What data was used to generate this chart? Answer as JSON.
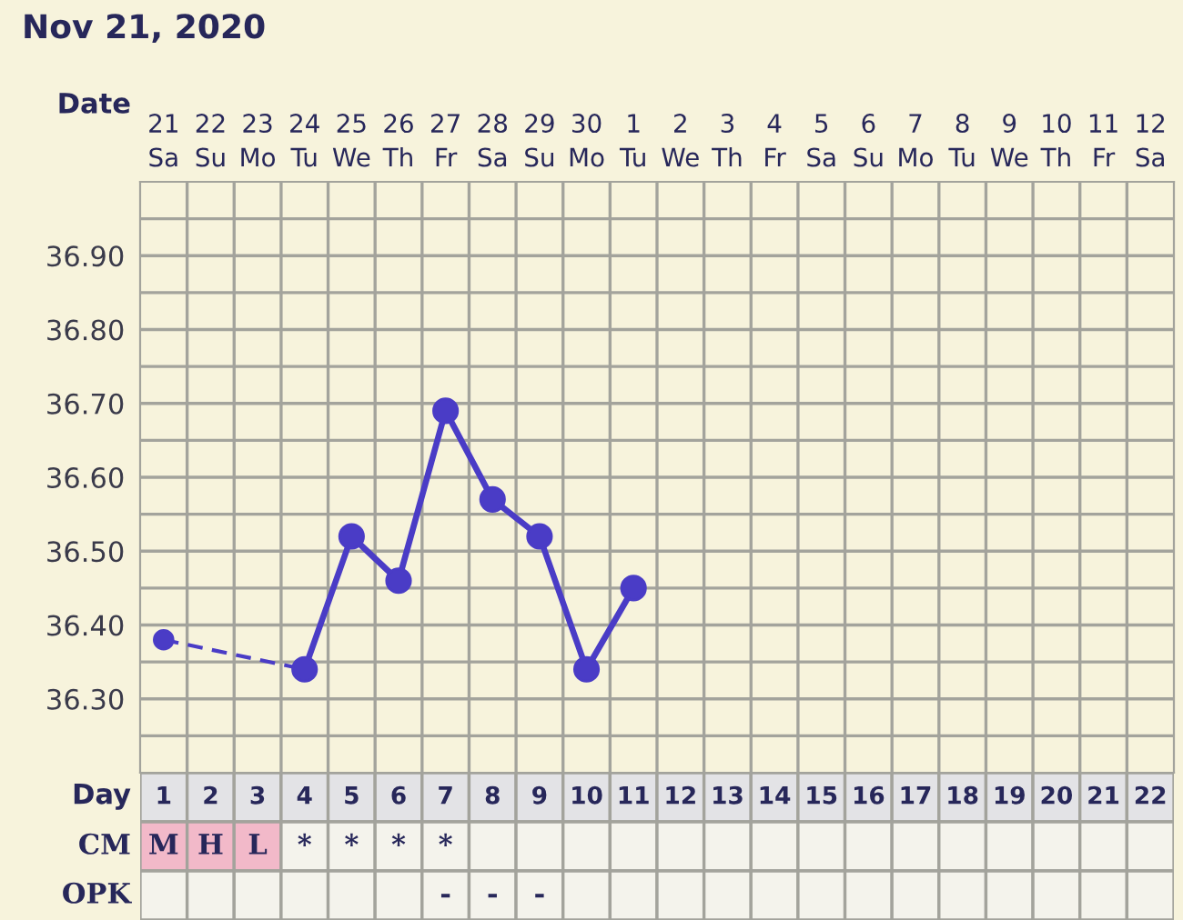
{
  "chart_data": [
    {
      "type": "line",
      "title": "Nov 21, 2020",
      "xlabel": "Date",
      "categories": [
        "21\nSa",
        "22\nSu",
        "23\nMo",
        "24\nTu",
        "25\nWe",
        "26\nTh",
        "27\nFr",
        "28\nSa",
        "29\nSu",
        "30\nMo",
        "1\nTu",
        "2\nWe",
        "3\nTh",
        "4\nFr",
        "5\nSa",
        "6\nSu",
        "7\nMo",
        "8\nTu",
        "9\nWe",
        "10\nTh",
        "11\nFr",
        "12\nSa"
      ],
      "ylim": [
        36.2,
        37.0
      ],
      "yticks": [
        {
          "value": 36.25,
          "label": null
        },
        {
          "value": 36.3,
          "label": "36.30"
        },
        {
          "value": 36.35,
          "label": null
        },
        {
          "value": 36.4,
          "label": "36.40"
        },
        {
          "value": 36.45,
          "label": null
        },
        {
          "value": 36.5,
          "label": "36.50"
        },
        {
          "value": 36.55,
          "label": null
        },
        {
          "value": 36.6,
          "label": "36.60"
        },
        {
          "value": 36.65,
          "label": null
        },
        {
          "value": 36.7,
          "label": "36.70"
        },
        {
          "value": 36.75,
          "label": null
        },
        {
          "value": 36.8,
          "label": "36.80"
        },
        {
          "value": 36.85,
          "label": null
        },
        {
          "value": 36.9,
          "label": "36.90"
        },
        {
          "value": 36.95,
          "label": null
        }
      ],
      "grid": true,
      "marker": "circle",
      "series": [
        {
          "color": "#4a3cc6",
          "line_style": "dashed",
          "values": [
            36.38,
            null,
            null,
            36.34,
            null,
            null,
            null,
            null,
            null,
            null,
            null,
            null,
            null,
            null,
            null,
            null,
            null,
            null,
            null,
            null,
            null,
            null
          ]
        },
        {
          "color": "#4a3cc6",
          "line_style": "solid",
          "values": [
            null,
            null,
            null,
            36.34,
            36.52,
            36.46,
            36.69,
            36.57,
            36.52,
            36.34,
            36.45,
            null,
            null,
            null,
            null,
            null,
            null,
            null,
            null,
            null,
            null,
            null
          ]
        }
      ]
    },
    {
      "type": "heatmap",
      "xlabel": "Day",
      "categories": [
        "1",
        "2",
        "3",
        "4",
        "5",
        "6",
        "7",
        "8",
        "9",
        "10",
        "11",
        "12",
        "13",
        "14",
        "15",
        "16",
        "17",
        "18",
        "19",
        "20",
        "21",
        "22"
      ],
      "y_categories": [
        "CM",
        "OPK"
      ],
      "cells": [
        [
          null,
          null,
          null,
          null,
          null,
          null,
          null,
          null,
          null,
          null,
          null,
          null,
          null,
          null,
          null,
          null,
          null,
          null,
          null,
          null,
          null,
          null
        ],
        [
          null,
          null,
          null,
          null,
          null,
          null,
          null,
          null,
          null,
          null,
          null,
          null,
          null,
          null,
          null,
          null,
          null,
          null,
          null,
          null,
          null,
          null
        ]
      ],
      "cell_labels": [
        [
          "M",
          "H",
          "L",
          "*",
          "*",
          "*",
          "*",
          null,
          null,
          null,
          null,
          null,
          null,
          null,
          null,
          null,
          null,
          null,
          null,
          null,
          null,
          null
        ],
        [
          null,
          null,
          null,
          null,
          null,
          null,
          "-",
          "-",
          "-",
          null,
          null,
          null,
          null,
          null,
          null,
          null,
          null,
          null,
          null,
          null,
          null,
          null
        ]
      ],
      "colors": [
        [
          "#f2b9c9",
          "#f2b9c9",
          "#f2b9c9",
          null,
          null,
          null,
          null,
          null,
          null,
          null,
          null,
          null,
          null,
          null,
          null,
          null,
          null,
          null,
          null,
          null,
          null,
          null
        ],
        [
          null,
          null,
          null,
          null,
          null,
          null,
          null,
          null,
          null,
          null,
          null,
          null,
          null,
          null,
          null,
          null,
          null,
          null,
          null,
          null,
          null,
          null
        ]
      ]
    }
  ]
}
